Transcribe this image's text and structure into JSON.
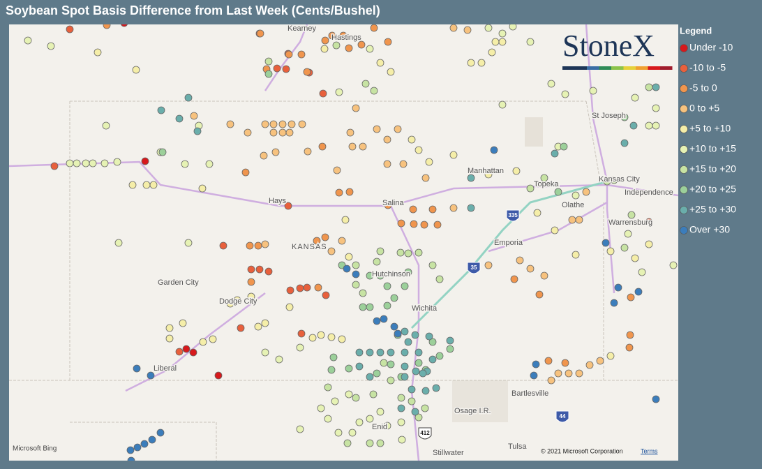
{
  "header": {
    "title": "Soybean Spot Basis Difference from Last Week (Cents/Bushel)"
  },
  "legend": {
    "title": "Legend",
    "items": [
      {
        "label": "Under -10",
        "color": "#d7191c"
      },
      {
        "label": "-10 to -5",
        "color": "#e8603c"
      },
      {
        "label": "-5 to 0",
        "color": "#f0954d"
      },
      {
        "label": "0 to +5",
        "color": "#f7c27e"
      },
      {
        "label": "+5 to +10",
        "color": "#f5eea8"
      },
      {
        "label": "+10 to +15",
        "color": "#e6f2b4"
      },
      {
        "label": "+15 to +20",
        "color": "#c7e3a3"
      },
      {
        "label": "+20 to +25",
        "color": "#9cd09a"
      },
      {
        "label": "+25 to +30",
        "color": "#6aaeab"
      },
      {
        "label": "Over +30",
        "color": "#3b7dbb"
      }
    ]
  },
  "map": {
    "places": [
      "Kearney",
      "Hastings",
      "St Joseph",
      "Manhattan",
      "Topeka",
      "Kansas City",
      "Independence",
      "Olathe",
      "Hays",
      "Salina",
      "Emporia",
      "Warrensburg",
      "KANSAS",
      "Garden City",
      "Dodge City",
      "Hutchinson",
      "Wichita",
      "Liberal",
      "Bartlesville",
      "Osage I.R.",
      "Enid",
      "Stillwater",
      "Tulsa"
    ],
    "shields": [
      "335",
      "35",
      "412",
      "44"
    ],
    "logo": "StoneX",
    "attribution": {
      "provider": "Microsoft Bing",
      "copyright": "© 2021 Microsoft Corporation",
      "terms": "Terms"
    }
  }
}
